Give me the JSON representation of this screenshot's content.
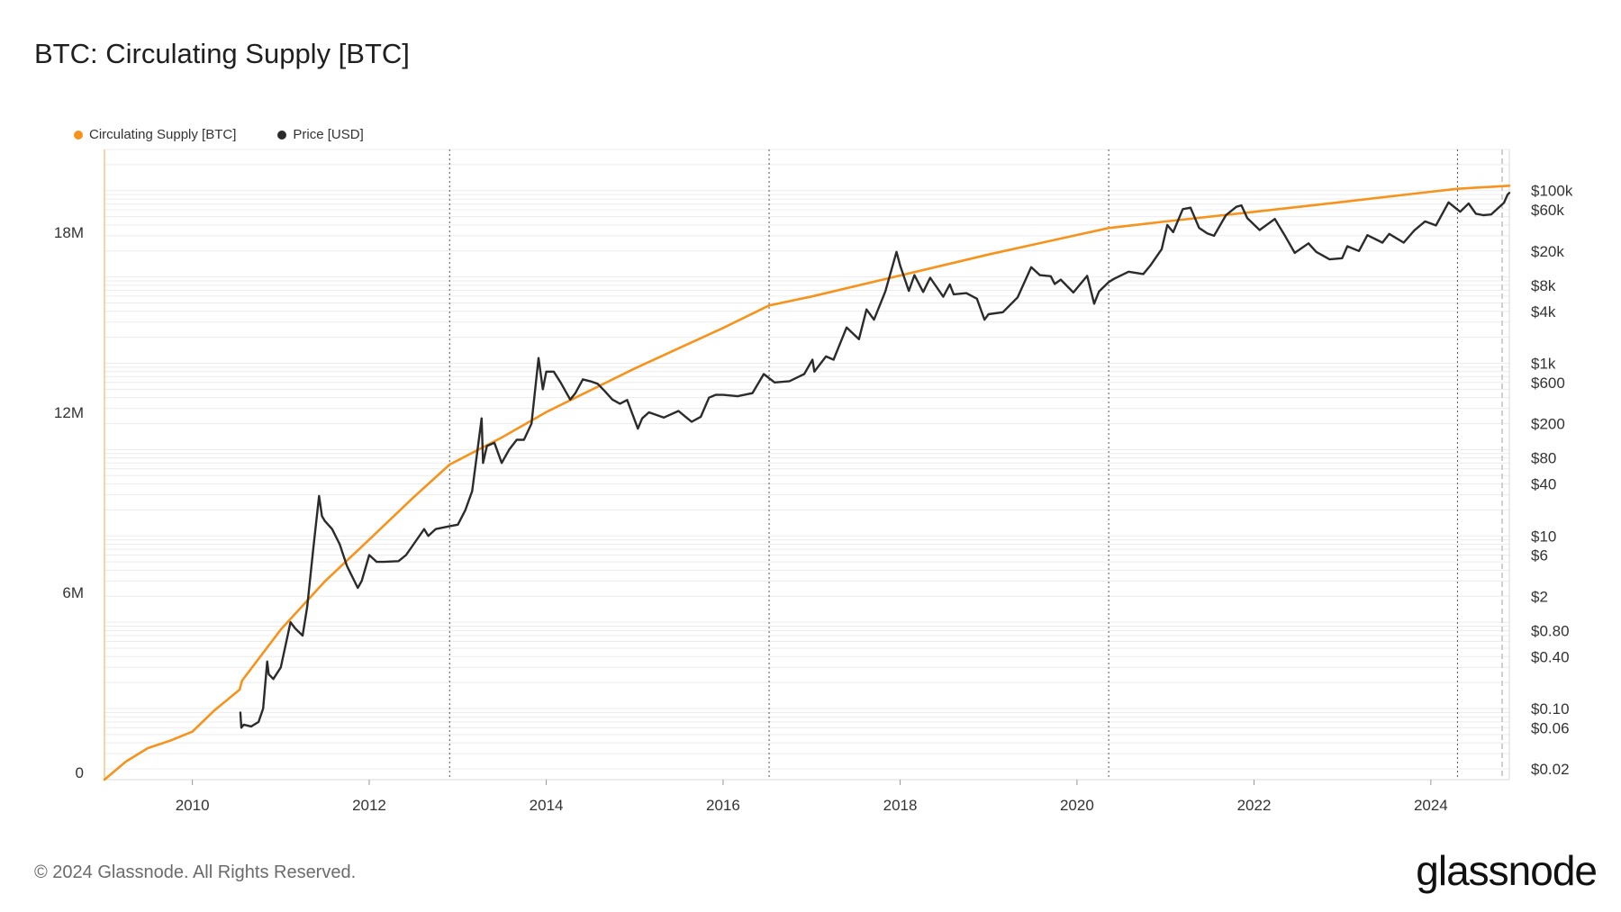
{
  "chart_data": {
    "type": "line",
    "title": "BTC: Circulating Supply [BTC]",
    "legend_placement": "top-left",
    "grid": true,
    "x_axis": {
      "type": "date",
      "range": [
        "2009-01-03",
        "2024-11-20"
      ],
      "tick_labels": [
        "2010",
        "2012",
        "2014",
        "2016",
        "2018",
        "2020",
        "2022",
        "2024"
      ],
      "tick_values": [
        "2010-01-01",
        "2012-01-01",
        "2014-01-01",
        "2016-01-01",
        "2018-01-01",
        "2020-01-01",
        "2022-01-01",
        "2024-01-01"
      ]
    },
    "y_left": {
      "scale": "linear",
      "range": [
        0,
        21000000
      ],
      "tick_labels": [
        "0",
        "6M",
        "12M",
        "18M"
      ],
      "tick_values": [
        0,
        6000000,
        12000000,
        18000000
      ]
    },
    "y_right": {
      "scale": "log",
      "range": [
        0.015,
        300000
      ],
      "tick_labels": [
        "$0.02",
        "$0.06",
        "$0.10",
        "$0.40",
        "$0.80",
        "$2",
        "$6",
        "$10",
        "$40",
        "$80",
        "$200",
        "$600",
        "$1k",
        "$4k",
        "$8k",
        "$20k",
        "$60k",
        "$100k"
      ],
      "tick_values": [
        0.02,
        0.06,
        0.1,
        0.4,
        0.8,
        2,
        6,
        10,
        40,
        80,
        200,
        600,
        1000,
        4000,
        8000,
        20000,
        60000,
        100000
      ]
    },
    "halving_dates": [
      "2012-11-28",
      "2016-07-09",
      "2020-05-11",
      "2024-04-20"
    ],
    "series": [
      {
        "name": "Circulating Supply [BTC]",
        "axis": "left",
        "color": "#f7931a",
        "points": [
          [
            "2009-01-03",
            0
          ],
          [
            "2009-04-01",
            600000
          ],
          [
            "2009-07-01",
            1050000
          ],
          [
            "2009-10-01",
            1300000
          ],
          [
            "2010-01-01",
            1600000
          ],
          [
            "2010-04-01",
            2300000
          ],
          [
            "2010-07-15",
            3000000
          ],
          [
            "2010-07-25",
            3300000
          ],
          [
            "2011-01-01",
            5000000
          ],
          [
            "2011-07-01",
            6600000
          ],
          [
            "2012-01-01",
            8000000
          ],
          [
            "2012-07-01",
            9400000
          ],
          [
            "2012-11-28",
            10500000
          ],
          [
            "2013-07-01",
            11400000
          ],
          [
            "2014-01-01",
            12250000
          ],
          [
            "2015-01-01",
            13700000
          ],
          [
            "2016-01-01",
            15050000
          ],
          [
            "2016-07-09",
            15800000
          ],
          [
            "2017-01-01",
            16100000
          ],
          [
            "2018-01-01",
            16800000
          ],
          [
            "2019-01-01",
            17500000
          ],
          [
            "2020-01-01",
            18150000
          ],
          [
            "2020-05-11",
            18380000
          ],
          [
            "2021-01-01",
            18600000
          ],
          [
            "2022-01-01",
            18920000
          ],
          [
            "2023-01-01",
            19250000
          ],
          [
            "2024-01-01",
            19590000
          ],
          [
            "2024-04-20",
            19690000
          ],
          [
            "2024-11-20",
            19790000
          ]
        ]
      },
      {
        "name": "Price [USD]",
        "axis": "right",
        "color": "#2b2b2b",
        "points": [
          [
            "2010-07-18",
            0.09
          ],
          [
            "2010-07-22",
            0.06
          ],
          [
            "2010-08-01",
            0.065
          ],
          [
            "2010-09-01",
            0.062
          ],
          [
            "2010-10-01",
            0.07
          ],
          [
            "2010-10-20",
            0.1
          ],
          [
            "2010-11-06",
            0.35
          ],
          [
            "2010-11-12",
            0.25
          ],
          [
            "2010-12-01",
            0.22
          ],
          [
            "2011-01-01",
            0.3
          ],
          [
            "2011-02-10",
            1.0
          ],
          [
            "2011-03-01",
            0.85
          ],
          [
            "2011-04-01",
            0.7
          ],
          [
            "2011-04-20",
            1.5
          ],
          [
            "2011-05-15",
            7
          ],
          [
            "2011-06-08",
            29
          ],
          [
            "2011-06-20",
            17
          ],
          [
            "2011-07-01",
            15
          ],
          [
            "2011-08-01",
            12
          ],
          [
            "2011-09-01",
            8
          ],
          [
            "2011-10-01",
            4.5
          ],
          [
            "2011-11-15",
            2.5
          ],
          [
            "2011-12-01",
            3
          ],
          [
            "2012-01-01",
            6
          ],
          [
            "2012-02-01",
            5
          ],
          [
            "2012-03-01",
            5
          ],
          [
            "2012-05-01",
            5.1
          ],
          [
            "2012-06-01",
            6
          ],
          [
            "2012-08-15",
            12
          ],
          [
            "2012-09-01",
            10
          ],
          [
            "2012-10-01",
            12
          ],
          [
            "2012-12-01",
            13
          ],
          [
            "2013-01-01",
            13.5
          ],
          [
            "2013-02-01",
            20
          ],
          [
            "2013-03-01",
            33
          ],
          [
            "2013-04-09",
            230
          ],
          [
            "2013-04-15",
            70
          ],
          [
            "2013-05-01",
            110
          ],
          [
            "2013-06-01",
            120
          ],
          [
            "2013-07-01",
            70
          ],
          [
            "2013-08-01",
            100
          ],
          [
            "2013-09-01",
            130
          ],
          [
            "2013-10-01",
            130
          ],
          [
            "2013-11-01",
            200
          ],
          [
            "2013-11-30",
            1150
          ],
          [
            "2013-12-18",
            500
          ],
          [
            "2014-01-01",
            800
          ],
          [
            "2014-02-01",
            800
          ],
          [
            "2014-03-01",
            600
          ],
          [
            "2014-04-10",
            380
          ],
          [
            "2014-05-01",
            450
          ],
          [
            "2014-06-01",
            650
          ],
          [
            "2014-07-01",
            620
          ],
          [
            "2014-08-01",
            580
          ],
          [
            "2014-09-01",
            470
          ],
          [
            "2014-10-01",
            380
          ],
          [
            "2014-11-01",
            340
          ],
          [
            "2014-12-01",
            375
          ],
          [
            "2015-01-14",
            175
          ],
          [
            "2015-02-01",
            230
          ],
          [
            "2015-03-01",
            270
          ],
          [
            "2015-05-01",
            235
          ],
          [
            "2015-07-01",
            280
          ],
          [
            "2015-08-24",
            210
          ],
          [
            "2015-10-01",
            240
          ],
          [
            "2015-11-04",
            400
          ],
          [
            "2015-12-01",
            430
          ],
          [
            "2016-01-01",
            430
          ],
          [
            "2016-03-01",
            415
          ],
          [
            "2016-05-01",
            450
          ],
          [
            "2016-06-17",
            750
          ],
          [
            "2016-08-01",
            600
          ],
          [
            "2016-10-01",
            620
          ],
          [
            "2016-12-01",
            750
          ],
          [
            "2017-01-04",
            1100
          ],
          [
            "2017-01-12",
            800
          ],
          [
            "2017-03-01",
            1200
          ],
          [
            "2017-04-01",
            1100
          ],
          [
            "2017-05-25",
            2600
          ],
          [
            "2017-07-15",
            1900
          ],
          [
            "2017-08-15",
            4200
          ],
          [
            "2017-09-15",
            3200
          ],
          [
            "2017-11-01",
            6800
          ],
          [
            "2017-12-17",
            19500
          ],
          [
            "2018-01-01",
            13500
          ],
          [
            "2018-02-06",
            6900
          ],
          [
            "2018-03-01",
            10500
          ],
          [
            "2018-04-06",
            6700
          ],
          [
            "2018-05-05",
            9800
          ],
          [
            "2018-06-28",
            5900
          ],
          [
            "2018-07-25",
            8200
          ],
          [
            "2018-08-10",
            6300
          ],
          [
            "2018-10-01",
            6500
          ],
          [
            "2018-11-14",
            5600
          ],
          [
            "2018-12-15",
            3200
          ],
          [
            "2019-01-01",
            3700
          ],
          [
            "2019-03-01",
            3900
          ],
          [
            "2019-05-01",
            5800
          ],
          [
            "2019-06-26",
            13000
          ],
          [
            "2019-08-01",
            10500
          ],
          [
            "2019-09-15",
            10200
          ],
          [
            "2019-10-01",
            8300
          ],
          [
            "2019-10-26",
            9300
          ],
          [
            "2019-12-17",
            6600
          ],
          [
            "2020-02-12",
            10300
          ],
          [
            "2020-03-12",
            4900
          ],
          [
            "2020-04-01",
            6800
          ],
          [
            "2020-05-11",
            8700
          ],
          [
            "2020-06-01",
            9500
          ],
          [
            "2020-08-01",
            11500
          ],
          [
            "2020-10-01",
            10800
          ],
          [
            "2020-11-01",
            13800
          ],
          [
            "2020-12-16",
            21000
          ],
          [
            "2021-01-08",
            40000
          ],
          [
            "2021-02-01",
            33000
          ],
          [
            "2021-03-13",
            61000
          ],
          [
            "2021-04-14",
            63500
          ],
          [
            "2021-05-19",
            37000
          ],
          [
            "2021-06-22",
            32000
          ],
          [
            "2021-07-20",
            30000
          ],
          [
            "2021-09-07",
            52000
          ],
          [
            "2021-10-20",
            65000
          ],
          [
            "2021-11-10",
            67500
          ],
          [
            "2021-12-04",
            48000
          ],
          [
            "2022-01-24",
            35000
          ],
          [
            "2022-03-28",
            47000
          ],
          [
            "2022-05-12",
            29000
          ],
          [
            "2022-06-18",
            19000
          ],
          [
            "2022-08-14",
            24500
          ],
          [
            "2022-09-15",
            19500
          ],
          [
            "2022-11-09",
            16000
          ],
          [
            "2022-12-31",
            16500
          ],
          [
            "2023-01-21",
            22700
          ],
          [
            "2023-03-10",
            20000
          ],
          [
            "2023-04-14",
            30500
          ],
          [
            "2023-06-15",
            25000
          ],
          [
            "2023-07-13",
            31500
          ],
          [
            "2023-09-11",
            25000
          ],
          [
            "2023-10-24",
            34500
          ],
          [
            "2023-12-08",
            44000
          ],
          [
            "2024-01-22",
            39500
          ],
          [
            "2024-03-14",
            73000
          ],
          [
            "2024-05-01",
            57000
          ],
          [
            "2024-06-05",
            71000
          ],
          [
            "2024-07-05",
            54000
          ],
          [
            "2024-08-05",
            52000
          ],
          [
            "2024-09-06",
            53000
          ],
          [
            "2024-10-29",
            72500
          ],
          [
            "2024-11-13",
            90000
          ],
          [
            "2024-11-20",
            94000
          ]
        ]
      }
    ]
  },
  "footer": {
    "copyright": "© 2024 Glassnode. All Rights Reserved."
  },
  "brand": {
    "logo_text": "glassnode"
  }
}
